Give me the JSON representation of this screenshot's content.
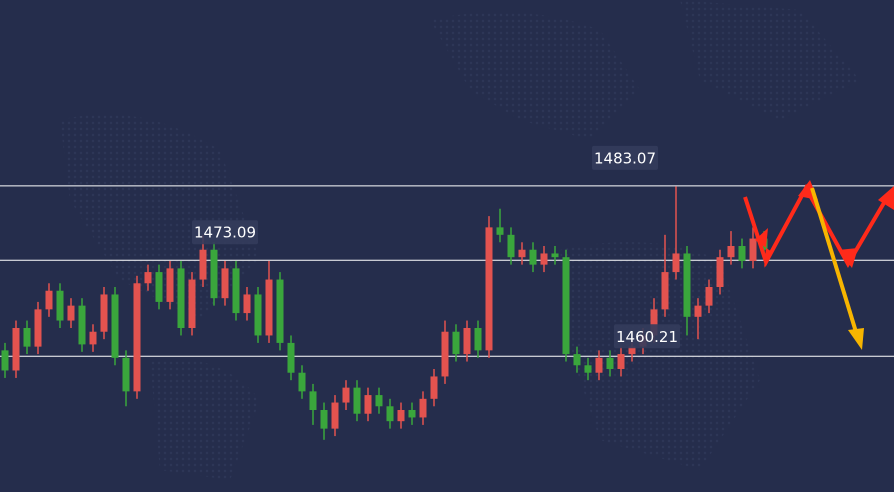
{
  "chart_data": {
    "type": "candlestick",
    "ylim": [
      1442,
      1508
    ],
    "up_color": "#e3534f",
    "down_color": "#3aa63c",
    "line_color": "#ffffff",
    "levels": [
      1483.07,
      1473.09,
      1460.21
    ],
    "open": [
      1461.0,
      1458.3,
      1464.0,
      1461.5,
      1466.5,
      1469.0,
      1465.0,
      1467.0,
      1461.8,
      1463.5,
      1468.5,
      1460.0,
      1455.5,
      1470.0,
      1471.5,
      1467.5,
      1472.0,
      1464.0,
      1470.5,
      1474.5,
      1468.0,
      1472.0,
      1466.0,
      1468.5,
      1463.0,
      1470.5,
      1462.0,
      1458.0,
      1455.5,
      1453.0,
      1450.5,
      1454.0,
      1456.0,
      1452.5,
      1455.0,
      1453.5,
      1451.5,
      1453.0,
      1452.0,
      1454.5,
      1457.5,
      1463.5,
      1460.5,
      1464.0,
      1461.0,
      1477.5,
      1476.5,
      1473.5,
      1474.5,
      1472.5,
      1474.0,
      1473.5,
      1460.5,
      1459.0,
      1458.0,
      1460.0,
      1458.5,
      1460.5,
      1461.5,
      1463.0,
      1466.5,
      1471.5,
      1474.0,
      1465.5,
      1467.0,
      1469.5,
      1473.5,
      1475.0,
      1473.0,
      1476.0
    ],
    "high": [
      1462.0,
      1465.0,
      1465.0,
      1467.5,
      1470.0,
      1470.0,
      1468.0,
      1468.0,
      1464.5,
      1469.5,
      1469.5,
      1461.0,
      1471.0,
      1472.5,
      1472.5,
      1473.0,
      1473.0,
      1471.5,
      1476.5,
      1475.5,
      1473.0,
      1473.0,
      1469.5,
      1469.5,
      1473.0,
      1471.5,
      1463.0,
      1459.0,
      1456.5,
      1454.0,
      1455.0,
      1457.0,
      1457.0,
      1456.0,
      1456.0,
      1454.5,
      1454.0,
      1454.0,
      1455.5,
      1458.5,
      1465.0,
      1464.5,
      1465.0,
      1465.0,
      1479.0,
      1480.0,
      1477.5,
      1475.5,
      1475.5,
      1475.0,
      1475.0,
      1474.5,
      1461.5,
      1460.0,
      1461.0,
      1461.0,
      1461.5,
      1462.5,
      1464.0,
      1468.0,
      1476.5,
      1483.0,
      1475.0,
      1468.0,
      1470.5,
      1474.5,
      1477.0,
      1476.0,
      1477.5,
      1477.0
    ],
    "low": [
      1457.3,
      1457.3,
      1460.5,
      1460.5,
      1465.5,
      1464.0,
      1464.0,
      1460.8,
      1460.8,
      1462.5,
      1459.0,
      1453.5,
      1454.5,
      1469.0,
      1466.5,
      1466.5,
      1463.0,
      1463.0,
      1469.5,
      1467.0,
      1467.0,
      1465.0,
      1465.0,
      1462.0,
      1462.0,
      1461.0,
      1457.0,
      1454.5,
      1451.0,
      1449.0,
      1449.5,
      1453.0,
      1451.5,
      1451.5,
      1452.5,
      1450.5,
      1450.5,
      1451.0,
      1451.0,
      1453.5,
      1456.5,
      1459.5,
      1459.5,
      1460.0,
      1460.0,
      1475.5,
      1472.5,
      1472.5,
      1471.5,
      1471.5,
      1472.5,
      1459.5,
      1458.0,
      1457.0,
      1457.0,
      1457.5,
      1457.5,
      1459.5,
      1460.5,
      1462.0,
      1465.5,
      1470.5,
      1463.0,
      1462.5,
      1466.0,
      1468.5,
      1472.5,
      1472.0,
      1472.0,
      1473.5
    ],
    "close": [
      1458.3,
      1464.0,
      1461.5,
      1466.5,
      1469.0,
      1465.0,
      1467.0,
      1461.8,
      1463.5,
      1468.5,
      1460.0,
      1455.5,
      1470.0,
      1471.5,
      1467.5,
      1472.0,
      1464.0,
      1470.5,
      1474.5,
      1468.0,
      1472.0,
      1466.0,
      1468.5,
      1463.0,
      1470.5,
      1462.0,
      1458.0,
      1455.5,
      1453.0,
      1450.5,
      1454.0,
      1456.0,
      1452.5,
      1455.0,
      1453.5,
      1451.5,
      1453.0,
      1452.0,
      1454.5,
      1457.5,
      1463.5,
      1460.5,
      1464.0,
      1461.0,
      1477.5,
      1476.5,
      1473.5,
      1474.5,
      1472.5,
      1474.0,
      1473.5,
      1460.5,
      1459.0,
      1458.0,
      1460.0,
      1458.5,
      1460.5,
      1461.5,
      1463.0,
      1466.5,
      1471.5,
      1474.0,
      1465.5,
      1467.0,
      1469.5,
      1473.5,
      1475.0,
      1473.0,
      1476.0,
      1474.5
    ]
  }
}
